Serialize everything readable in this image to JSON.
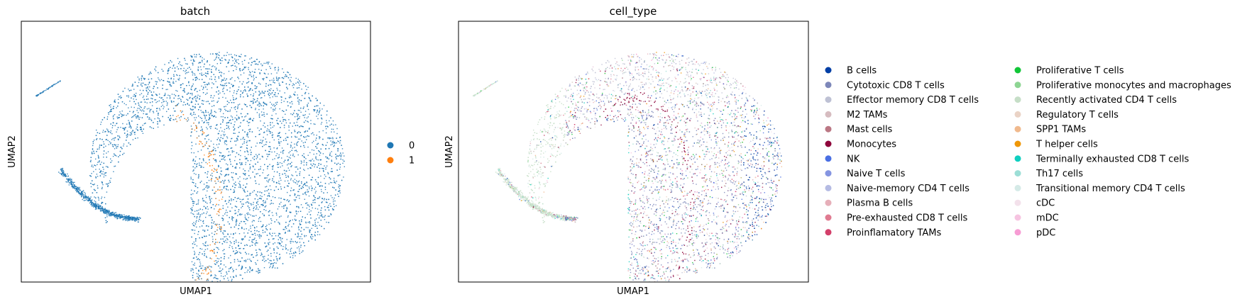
{
  "chart_data": [
    {
      "type": "scatter",
      "title": "batch",
      "xlabel": "UMAP1",
      "ylabel": "UMAP2",
      "grid": false,
      "ticks": false,
      "legend_placement": "right, outside plot",
      "colors": [
        "#1f77b4",
        "#ff7f0e"
      ],
      "series": [
        {
          "name": "0",
          "color": "#1f77b4"
        },
        {
          "name": "1",
          "color": "#ff7f0e"
        }
      ]
    },
    {
      "type": "scatter",
      "title": "cell_type",
      "xlabel": "UMAP1",
      "ylabel": "UMAP2",
      "grid": false,
      "ticks": false,
      "legend_placement": "right, outside plot, two columns",
      "series": [
        {
          "name": "B cells",
          "color": "#023fa5"
        },
        {
          "name": "Cytotoxic CD8 T cells",
          "color": "#7d87b9"
        },
        {
          "name": "Effector memory CD8 T cells",
          "color": "#bec1d4"
        },
        {
          "name": "M2 TAMs",
          "color": "#d6bcc0"
        },
        {
          "name": "Mast cells",
          "color": "#bb7784"
        },
        {
          "name": "Monocytes",
          "color": "#8e063b"
        },
        {
          "name": "NK",
          "color": "#4a6fe3"
        },
        {
          "name": "Naive T cells",
          "color": "#8595e1"
        },
        {
          "name": "Naive-memory CD4 T cells",
          "color": "#b5bbe3"
        },
        {
          "name": "Plasma B cells",
          "color": "#e6afb9"
        },
        {
          "name": "Pre-exhausted CD8 T cells",
          "color": "#e07b91"
        },
        {
          "name": "Proinflamatory TAMs",
          "color": "#d33f6a"
        },
        {
          "name": "Proliferative T cells",
          "color": "#11c638"
        },
        {
          "name": "Proliferative monocytes and macrophages",
          "color": "#8dd593"
        },
        {
          "name": "Recently activated CD4 T cells",
          "color": "#c6dec7"
        },
        {
          "name": "Regulatory T cells",
          "color": "#ead3c6"
        },
        {
          "name": "SPP1 TAMs",
          "color": "#f0b98d"
        },
        {
          "name": "T helper cells",
          "color": "#ef9708"
        },
        {
          "name": "Terminally exhausted CD8 T cells",
          "color": "#0fcfc0"
        },
        {
          "name": "Th17 cells",
          "color": "#9cded6"
        },
        {
          "name": "Transitional memory CD4 T cells",
          "color": "#d5eae7"
        },
        {
          "name": "cDC",
          "color": "#f3e1eb"
        },
        {
          "name": "mDC",
          "color": "#f6c4e1"
        },
        {
          "name": "pDC",
          "color": "#f79cd4"
        }
      ]
    }
  ]
}
